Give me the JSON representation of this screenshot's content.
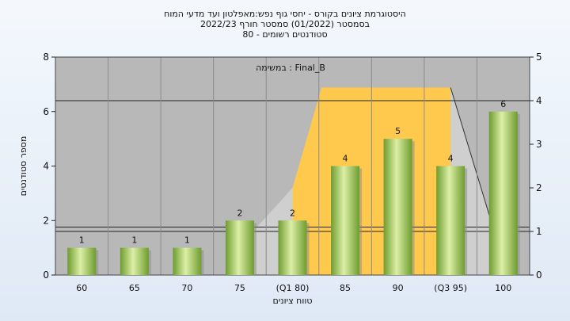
{
  "title_lines": [
    "היסטוגרמת ציונים בקורס - יחסי גוף נפש:מאפלטון ועד מדעי המוח",
    "בסמסטר  (01/2022)  סמסטר חורף 2022/23",
    "סטודנטים רשומים - 80"
  ],
  "chart_data": {
    "type": "bar",
    "categories": [
      "60",
      "65",
      "70",
      "75",
      "(Q1 80)",
      "85",
      "90",
      "(Q3 95)",
      "100"
    ],
    "values": [
      1,
      1,
      1,
      2,
      2,
      4,
      5,
      4,
      6
    ],
    "data_labels": [
      "1",
      "1",
      "1",
      "2",
      "2",
      "4",
      "5",
      "4",
      "6"
    ],
    "xlabel": "טווח ציונים",
    "ylabel": "מספר סטודנטים",
    "ylim": [
      0,
      8
    ],
    "yticks": [
      0,
      2,
      4,
      6,
      8
    ],
    "y2lim": [
      0,
      5
    ],
    "y2ticks": [
      0,
      1,
      2,
      3,
      4,
      5
    ],
    "annotation": "Final_B : במשימה",
    "q1_category": "(Q1 80)",
    "q3_category": "(Q3 95)",
    "box_top_right_axis": 4.3,
    "reference_lines_right_axis": [
      1.0,
      1.1,
      4.0
    ],
    "grid": true,
    "colors": {
      "plot_bg": "#b8b8b8",
      "box_fill": "#ffc94e",
      "box_shadow": "#cfcfcf",
      "bar_light": "#dcefa6",
      "bar_dark": "#6e9c2e"
    }
  }
}
